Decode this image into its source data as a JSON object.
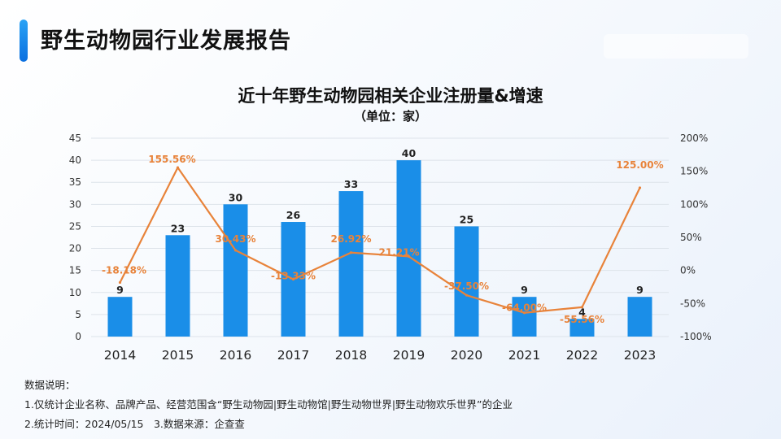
{
  "header": {
    "title": "野生动物园行业发展报告"
  },
  "chart_data": {
    "type": "bar",
    "title": "近十年野生动物园相关企业注册量&增速",
    "subtitle": "（单位：家）",
    "categories": [
      "2014",
      "2015",
      "2016",
      "2017",
      "2018",
      "2019",
      "2020",
      "2021",
      "2022",
      "2023"
    ],
    "series": [
      {
        "type": "bar",
        "values": [
          9,
          23,
          30,
          26,
          33,
          40,
          25,
          9,
          4,
          9
        ],
        "color": "#1a8ee8",
        "axis": "left"
      },
      {
        "type": "line",
        "values": [
          -18.18,
          155.56,
          30.43,
          -13.33,
          26.92,
          21.21,
          -37.5,
          -64.0,
          -55.56,
          125.0
        ],
        "labels": [
          "-18.18%",
          "155.56%",
          "30.43%",
          "-13.33%",
          "26.92%",
          "21.21%",
          "-37.50%",
          "-64.00%",
          "-55.56%",
          "125.00%"
        ],
        "color": "#e8833a",
        "axis": "right"
      }
    ],
    "y_left": {
      "min": 0,
      "max": 45,
      "ticks": [
        "0",
        "5",
        "10",
        "15",
        "20",
        "25",
        "30",
        "35",
        "40",
        "45"
      ]
    },
    "y_right": {
      "min": -100,
      "max": 200,
      "ticks": [
        "-100%",
        "-50%",
        "0%",
        "50%",
        "100%",
        "150%",
        "200%"
      ]
    },
    "grid": true,
    "legend": "none"
  },
  "notes": {
    "heading": "数据说明：",
    "line1": "1.仅统计企业名称、品牌产品、经营范围含“野生动物园|野生动物馆|野生动物世界|野生动物欢乐世界”的企业",
    "line2": "2.统计时间：2024/05/15　3.数据来源：企查查"
  }
}
